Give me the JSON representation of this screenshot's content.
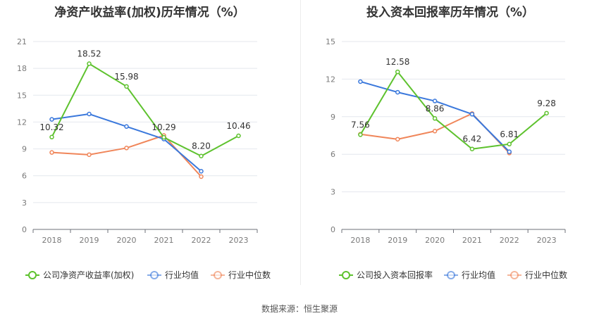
{
  "source": "数据来源：恒生聚源",
  "chart_data": [
    {
      "type": "line",
      "title": "净资产收益率(加权)历年情况（%）",
      "categories": [
        "2018",
        "2019",
        "2020",
        "2021",
        "2022",
        "2023"
      ],
      "ylim": [
        0,
        21
      ],
      "yticks": [
        0,
        3,
        6,
        9,
        12,
        15,
        18,
        21
      ],
      "grid": true,
      "legend_position": "bottom",
      "series": [
        {
          "name": "公司净资产收益率(加权)",
          "color": "#5ec22e",
          "values": [
            10.32,
            18.52,
            15.98,
            10.29,
            8.2,
            10.46
          ],
          "labels": [
            "10.32",
            "18.52",
            "15.98",
            "10.29",
            "8.20",
            "10.46"
          ]
        },
        {
          "name": "行业均值",
          "color": "#3a78dc",
          "values": [
            12.3,
            12.9,
            11.5,
            10.1,
            6.5,
            null
          ]
        },
        {
          "name": "行业中位数",
          "color": "#f0865a",
          "values": [
            8.6,
            8.35,
            9.1,
            10.5,
            5.9,
            null
          ]
        }
      ]
    },
    {
      "type": "line",
      "title": "投入资本回报率历年情况（%）",
      "categories": [
        "2018",
        "2019",
        "2020",
        "2021",
        "2022",
        "2023"
      ],
      "ylim": [
        0,
        15
      ],
      "yticks": [
        0,
        3,
        6,
        9,
        12,
        15
      ],
      "grid": true,
      "legend_position": "bottom",
      "series": [
        {
          "name": "公司投入资本回报率",
          "color": "#5ec22e",
          "values": [
            7.56,
            12.58,
            8.86,
            6.42,
            6.81,
            9.28
          ],
          "labels": [
            "7.56",
            "12.58",
            "8.86",
            "6.42",
            "6.81",
            "9.28"
          ]
        },
        {
          "name": "行业均值",
          "color": "#3a78dc",
          "values": [
            11.8,
            10.95,
            10.25,
            9.2,
            6.2,
            null
          ]
        },
        {
          "name": "行业中位数",
          "color": "#f0865a",
          "values": [
            7.6,
            7.2,
            7.85,
            9.25,
            6.1,
            null
          ]
        }
      ]
    }
  ]
}
